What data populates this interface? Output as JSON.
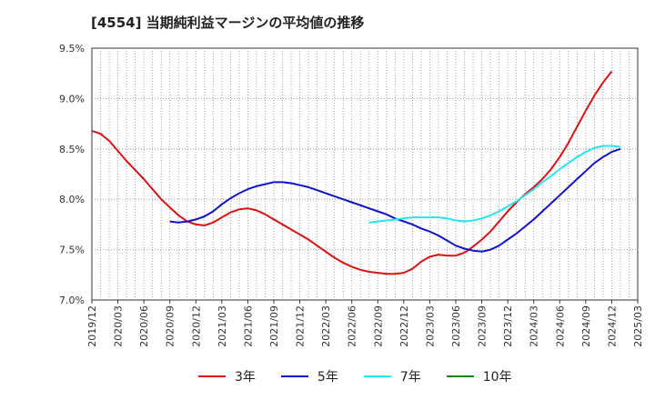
{
  "title": "[4554]  当期純利益マージンの平均値の推移",
  "chart_data": {
    "type": "line",
    "ylim": [
      7.0,
      9.5
    ],
    "yticks": [
      7.0,
      7.5,
      8.0,
      8.5,
      9.0,
      9.5
    ],
    "ytick_labels": [
      "7.0%",
      "7.5%",
      "8.0%",
      "8.5%",
      "9.0%",
      "9.5%"
    ],
    "xlim": [
      "2019/12",
      "2025/03"
    ],
    "xtick_labels": [
      "2019/12",
      "2020/03",
      "2020/06",
      "2020/09",
      "2020/12",
      "2021/03",
      "2021/06",
      "2021/09",
      "2021/12",
      "2022/03",
      "2022/06",
      "2022/09",
      "2022/12",
      "2023/03",
      "2023/06",
      "2023/09",
      "2023/12",
      "2024/03",
      "2024/06",
      "2024/09",
      "2024/12",
      "2025/03"
    ],
    "grid": true,
    "legend_position": "bottom",
    "series": [
      {
        "name": "3年",
        "color": "#dd1111",
        "points": [
          [
            "2019/12",
            8.68
          ],
          [
            "2020/01",
            8.65
          ],
          [
            "2020/02",
            8.58
          ],
          [
            "2020/03",
            8.48
          ],
          [
            "2020/04",
            8.38
          ],
          [
            "2020/05",
            8.29
          ],
          [
            "2020/06",
            8.2
          ],
          [
            "2020/07",
            8.1
          ],
          [
            "2020/08",
            8.0
          ],
          [
            "2020/09",
            7.92
          ],
          [
            "2020/10",
            7.84
          ],
          [
            "2020/11",
            7.78
          ],
          [
            "2020/12",
            7.75
          ],
          [
            "2021/01",
            7.74
          ],
          [
            "2021/02",
            7.77
          ],
          [
            "2021/03",
            7.82
          ],
          [
            "2021/04",
            7.87
          ],
          [
            "2021/05",
            7.9
          ],
          [
            "2021/06",
            7.91
          ],
          [
            "2021/07",
            7.89
          ],
          [
            "2021/08",
            7.85
          ],
          [
            "2021/09",
            7.8
          ],
          [
            "2021/10",
            7.75
          ],
          [
            "2021/11",
            7.7
          ],
          [
            "2021/12",
            7.65
          ],
          [
            "2022/01",
            7.6
          ],
          [
            "2022/02",
            7.54
          ],
          [
            "2022/03",
            7.48
          ],
          [
            "2022/04",
            7.42
          ],
          [
            "2022/05",
            7.37
          ],
          [
            "2022/06",
            7.33
          ],
          [
            "2022/07",
            7.3
          ],
          [
            "2022/08",
            7.28
          ],
          [
            "2022/09",
            7.27
          ],
          [
            "2022/10",
            7.26
          ],
          [
            "2022/11",
            7.26
          ],
          [
            "2022/12",
            7.27
          ],
          [
            "2023/01",
            7.31
          ],
          [
            "2023/02",
            7.38
          ],
          [
            "2023/03",
            7.43
          ],
          [
            "2023/04",
            7.45
          ],
          [
            "2023/05",
            7.44
          ],
          [
            "2023/06",
            7.44
          ],
          [
            "2023/07",
            7.47
          ],
          [
            "2023/08",
            7.53
          ],
          [
            "2023/09",
            7.6
          ],
          [
            "2023/10",
            7.68
          ],
          [
            "2023/11",
            7.78
          ],
          [
            "2023/12",
            7.88
          ],
          [
            "2024/01",
            7.97
          ],
          [
            "2024/02",
            8.05
          ],
          [
            "2024/03",
            8.12
          ],
          [
            "2024/04",
            8.2
          ],
          [
            "2024/05",
            8.3
          ],
          [
            "2024/06",
            8.42
          ],
          [
            "2024/07",
            8.56
          ],
          [
            "2024/08",
            8.72
          ],
          [
            "2024/09",
            8.88
          ],
          [
            "2024/10",
            9.03
          ],
          [
            "2024/11",
            9.16
          ],
          [
            "2024/12",
            9.27
          ]
        ]
      },
      {
        "name": "5年",
        "color": "#1111cc",
        "points": [
          [
            "2020/09",
            7.78
          ],
          [
            "2020/10",
            7.77
          ],
          [
            "2020/11",
            7.78
          ],
          [
            "2020/12",
            7.8
          ],
          [
            "2021/01",
            7.83
          ],
          [
            "2021/02",
            7.88
          ],
          [
            "2021/03",
            7.95
          ],
          [
            "2021/04",
            8.01
          ],
          [
            "2021/05",
            8.06
          ],
          [
            "2021/06",
            8.1
          ],
          [
            "2021/07",
            8.13
          ],
          [
            "2021/08",
            8.15
          ],
          [
            "2021/09",
            8.17
          ],
          [
            "2021/10",
            8.17
          ],
          [
            "2021/11",
            8.16
          ],
          [
            "2021/12",
            8.14
          ],
          [
            "2022/01",
            8.12
          ],
          [
            "2022/02",
            8.09
          ],
          [
            "2022/03",
            8.06
          ],
          [
            "2022/04",
            8.03
          ],
          [
            "2022/05",
            8.0
          ],
          [
            "2022/06",
            7.97
          ],
          [
            "2022/07",
            7.94
          ],
          [
            "2022/08",
            7.91
          ],
          [
            "2022/09",
            7.88
          ],
          [
            "2022/10",
            7.85
          ],
          [
            "2022/11",
            7.81
          ],
          [
            "2022/12",
            7.78
          ],
          [
            "2023/01",
            7.75
          ],
          [
            "2023/02",
            7.71
          ],
          [
            "2023/03",
            7.68
          ],
          [
            "2023/04",
            7.64
          ],
          [
            "2023/05",
            7.59
          ],
          [
            "2023/06",
            7.54
          ],
          [
            "2023/07",
            7.51
          ],
          [
            "2023/08",
            7.49
          ],
          [
            "2023/09",
            7.48
          ],
          [
            "2023/10",
            7.5
          ],
          [
            "2023/11",
            7.54
          ],
          [
            "2023/12",
            7.6
          ],
          [
            "2024/01",
            7.66
          ],
          [
            "2024/02",
            7.73
          ],
          [
            "2024/03",
            7.8
          ],
          [
            "2024/04",
            7.88
          ],
          [
            "2024/05",
            7.96
          ],
          [
            "2024/06",
            8.04
          ],
          [
            "2024/07",
            8.12
          ],
          [
            "2024/08",
            8.2
          ],
          [
            "2024/09",
            8.28
          ],
          [
            "2024/10",
            8.36
          ],
          [
            "2024/11",
            8.42
          ],
          [
            "2024/12",
            8.47
          ],
          [
            "2025/01",
            8.5
          ]
        ]
      },
      {
        "name": "7年",
        "color": "#22e5f5",
        "points": [
          [
            "2022/08",
            7.77
          ],
          [
            "2022/09",
            7.78
          ],
          [
            "2022/10",
            7.79
          ],
          [
            "2022/11",
            7.8
          ],
          [
            "2022/12",
            7.81
          ],
          [
            "2023/01",
            7.82
          ],
          [
            "2023/02",
            7.82
          ],
          [
            "2023/03",
            7.82
          ],
          [
            "2023/04",
            7.82
          ],
          [
            "2023/05",
            7.81
          ],
          [
            "2023/06",
            7.79
          ],
          [
            "2023/07",
            7.78
          ],
          [
            "2023/08",
            7.79
          ],
          [
            "2023/09",
            7.81
          ],
          [
            "2023/10",
            7.84
          ],
          [
            "2023/11",
            7.88
          ],
          [
            "2023/12",
            7.93
          ],
          [
            "2024/01",
            7.98
          ],
          [
            "2024/02",
            8.04
          ],
          [
            "2024/03",
            8.1
          ],
          [
            "2024/04",
            8.17
          ],
          [
            "2024/05",
            8.23
          ],
          [
            "2024/06",
            8.3
          ],
          [
            "2024/07",
            8.36
          ],
          [
            "2024/08",
            8.42
          ],
          [
            "2024/09",
            8.47
          ],
          [
            "2024/10",
            8.51
          ],
          [
            "2024/11",
            8.53
          ],
          [
            "2024/12",
            8.53
          ],
          [
            "2025/01",
            8.52
          ]
        ]
      },
      {
        "name": "10年",
        "color": "#118811",
        "points": []
      }
    ]
  }
}
